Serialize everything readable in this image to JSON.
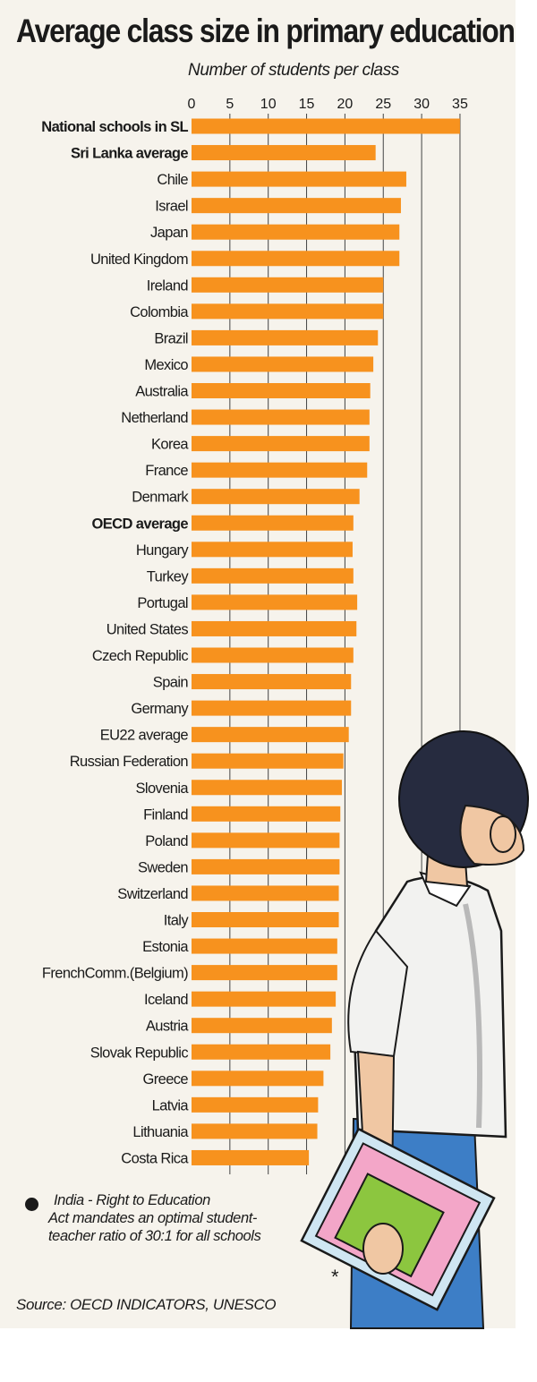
{
  "title": "Average class size in primary education",
  "note": {
    "line1": "India - Right to Education",
    "rest": "Act mandates an optimal student-teacher ratio of 30:1 for all schools"
  },
  "source": "Source: OECD INDICATORS, UNESCO",
  "marker": "*",
  "colors": {
    "bar": "#f7921e",
    "background": "#f6f3ec",
    "grid": "#444444"
  },
  "chart_data": {
    "type": "bar",
    "orientation": "horizontal",
    "xlabel": "Number of students per class",
    "xlim": [
      0,
      35
    ],
    "xticks": [
      0,
      5,
      10,
      15,
      20,
      25,
      30,
      35
    ],
    "grid": true,
    "categories": [
      "National schools in SL",
      "Sri Lanka average",
      "Chile",
      "Israel",
      "Japan",
      "United Kingdom",
      "Ireland",
      "Colombia",
      "Brazil",
      "Mexico",
      "Australia",
      "Netherland",
      "Korea",
      "France",
      "Denmark",
      "OECD average",
      "Hungary",
      "Turkey",
      "Portugal",
      "United States",
      "Czech Republic",
      "Spain",
      "Germany",
      "EU22 average",
      "Russian Federation",
      "Slovenia",
      "Finland",
      "Poland",
      "Sweden",
      "Switzerland",
      "Italy",
      "Estonia",
      "FrenchComm.(Belgium)",
      "Iceland",
      "Austria",
      "Slovak Republic",
      "Greece",
      "Latvia",
      "Lithuania",
      "Costa Rica"
    ],
    "bold_categories": [
      "National schools in SL",
      "Sri Lanka average",
      "OECD average"
    ],
    "values": [
      35,
      24,
      28,
      27.3,
      27.1,
      27.1,
      25,
      25,
      24.3,
      23.7,
      23.3,
      23.2,
      23.2,
      22.9,
      21.9,
      21.1,
      21,
      21.1,
      21.6,
      21.5,
      21.1,
      20.8,
      20.8,
      20.5,
      19.8,
      19.6,
      19.4,
      19.3,
      19.3,
      19.2,
      19.2,
      19,
      19,
      18.8,
      18.3,
      18.1,
      17.2,
      16.5,
      16.4,
      15.3
    ]
  }
}
